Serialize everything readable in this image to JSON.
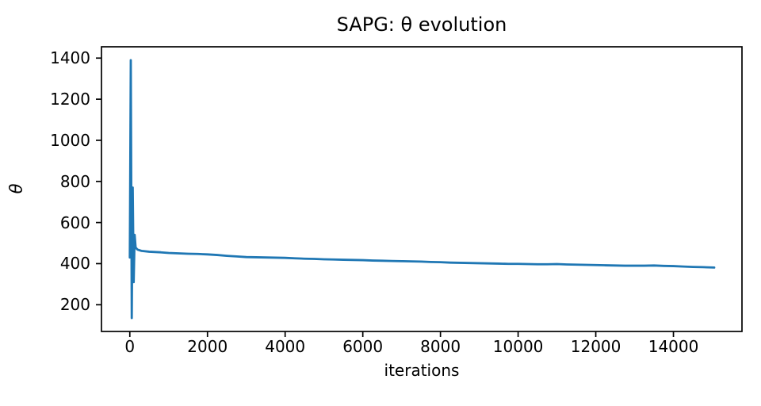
{
  "figure": {
    "background_color": "#ffffff",
    "text_color": "#000000",
    "spine_color": "#000000"
  },
  "chart_data": {
    "type": "line",
    "title": "SAPG: θ evolution",
    "xlabel": "iterations",
    "ylabel": "θ",
    "xlim": [
      -730,
      15765
    ],
    "ylim": [
      70,
      1455
    ],
    "xticks": [
      0,
      2000,
      4000,
      6000,
      8000,
      10000,
      12000,
      14000
    ],
    "yticks": [
      200,
      400,
      600,
      800,
      1000,
      1200,
      1400
    ],
    "grid": false,
    "legend": null,
    "line_color": "#1f77b4",
    "series": [
      {
        "name": "theta",
        "points": [
          [
            0,
            430
          ],
          [
            25,
            1390
          ],
          [
            50,
            135
          ],
          [
            75,
            770
          ],
          [
            100,
            310
          ],
          [
            125,
            540
          ],
          [
            150,
            478
          ],
          [
            200,
            468
          ],
          [
            300,
            462
          ],
          [
            500,
            458
          ],
          [
            800,
            455
          ],
          [
            1000,
            452
          ],
          [
            1250,
            450
          ],
          [
            1500,
            448
          ],
          [
            1750,
            447
          ],
          [
            2000,
            445
          ],
          [
            2250,
            442
          ],
          [
            2500,
            438
          ],
          [
            2750,
            435
          ],
          [
            3000,
            432
          ],
          [
            3250,
            431
          ],
          [
            3500,
            430
          ],
          [
            3750,
            429
          ],
          [
            4000,
            428
          ],
          [
            4250,
            426
          ],
          [
            4500,
            424
          ],
          [
            4750,
            423
          ],
          [
            5000,
            421
          ],
          [
            5250,
            420
          ],
          [
            5500,
            419
          ],
          [
            5750,
            418
          ],
          [
            6000,
            417
          ],
          [
            6250,
            415
          ],
          [
            6500,
            414
          ],
          [
            6750,
            413
          ],
          [
            7000,
            412
          ],
          [
            7250,
            411
          ],
          [
            7500,
            410
          ],
          [
            7750,
            408
          ],
          [
            8000,
            407
          ],
          [
            8250,
            405
          ],
          [
            8500,
            404
          ],
          [
            8750,
            403
          ],
          [
            9000,
            402
          ],
          [
            9250,
            401
          ],
          [
            9500,
            400
          ],
          [
            9750,
            399
          ],
          [
            10000,
            399
          ],
          [
            10250,
            398
          ],
          [
            10500,
            397
          ],
          [
            10750,
            397
          ],
          [
            11000,
            398
          ],
          [
            11250,
            396
          ],
          [
            11500,
            395
          ],
          [
            11750,
            394
          ],
          [
            12000,
            393
          ],
          [
            12250,
            392
          ],
          [
            12500,
            391
          ],
          [
            12750,
            390
          ],
          [
            13000,
            390
          ],
          [
            13250,
            390
          ],
          [
            13500,
            391
          ],
          [
            13750,
            389
          ],
          [
            14000,
            388
          ],
          [
            14250,
            386
          ],
          [
            14500,
            384
          ],
          [
            14750,
            383
          ],
          [
            15050,
            381
          ]
        ]
      }
    ]
  }
}
